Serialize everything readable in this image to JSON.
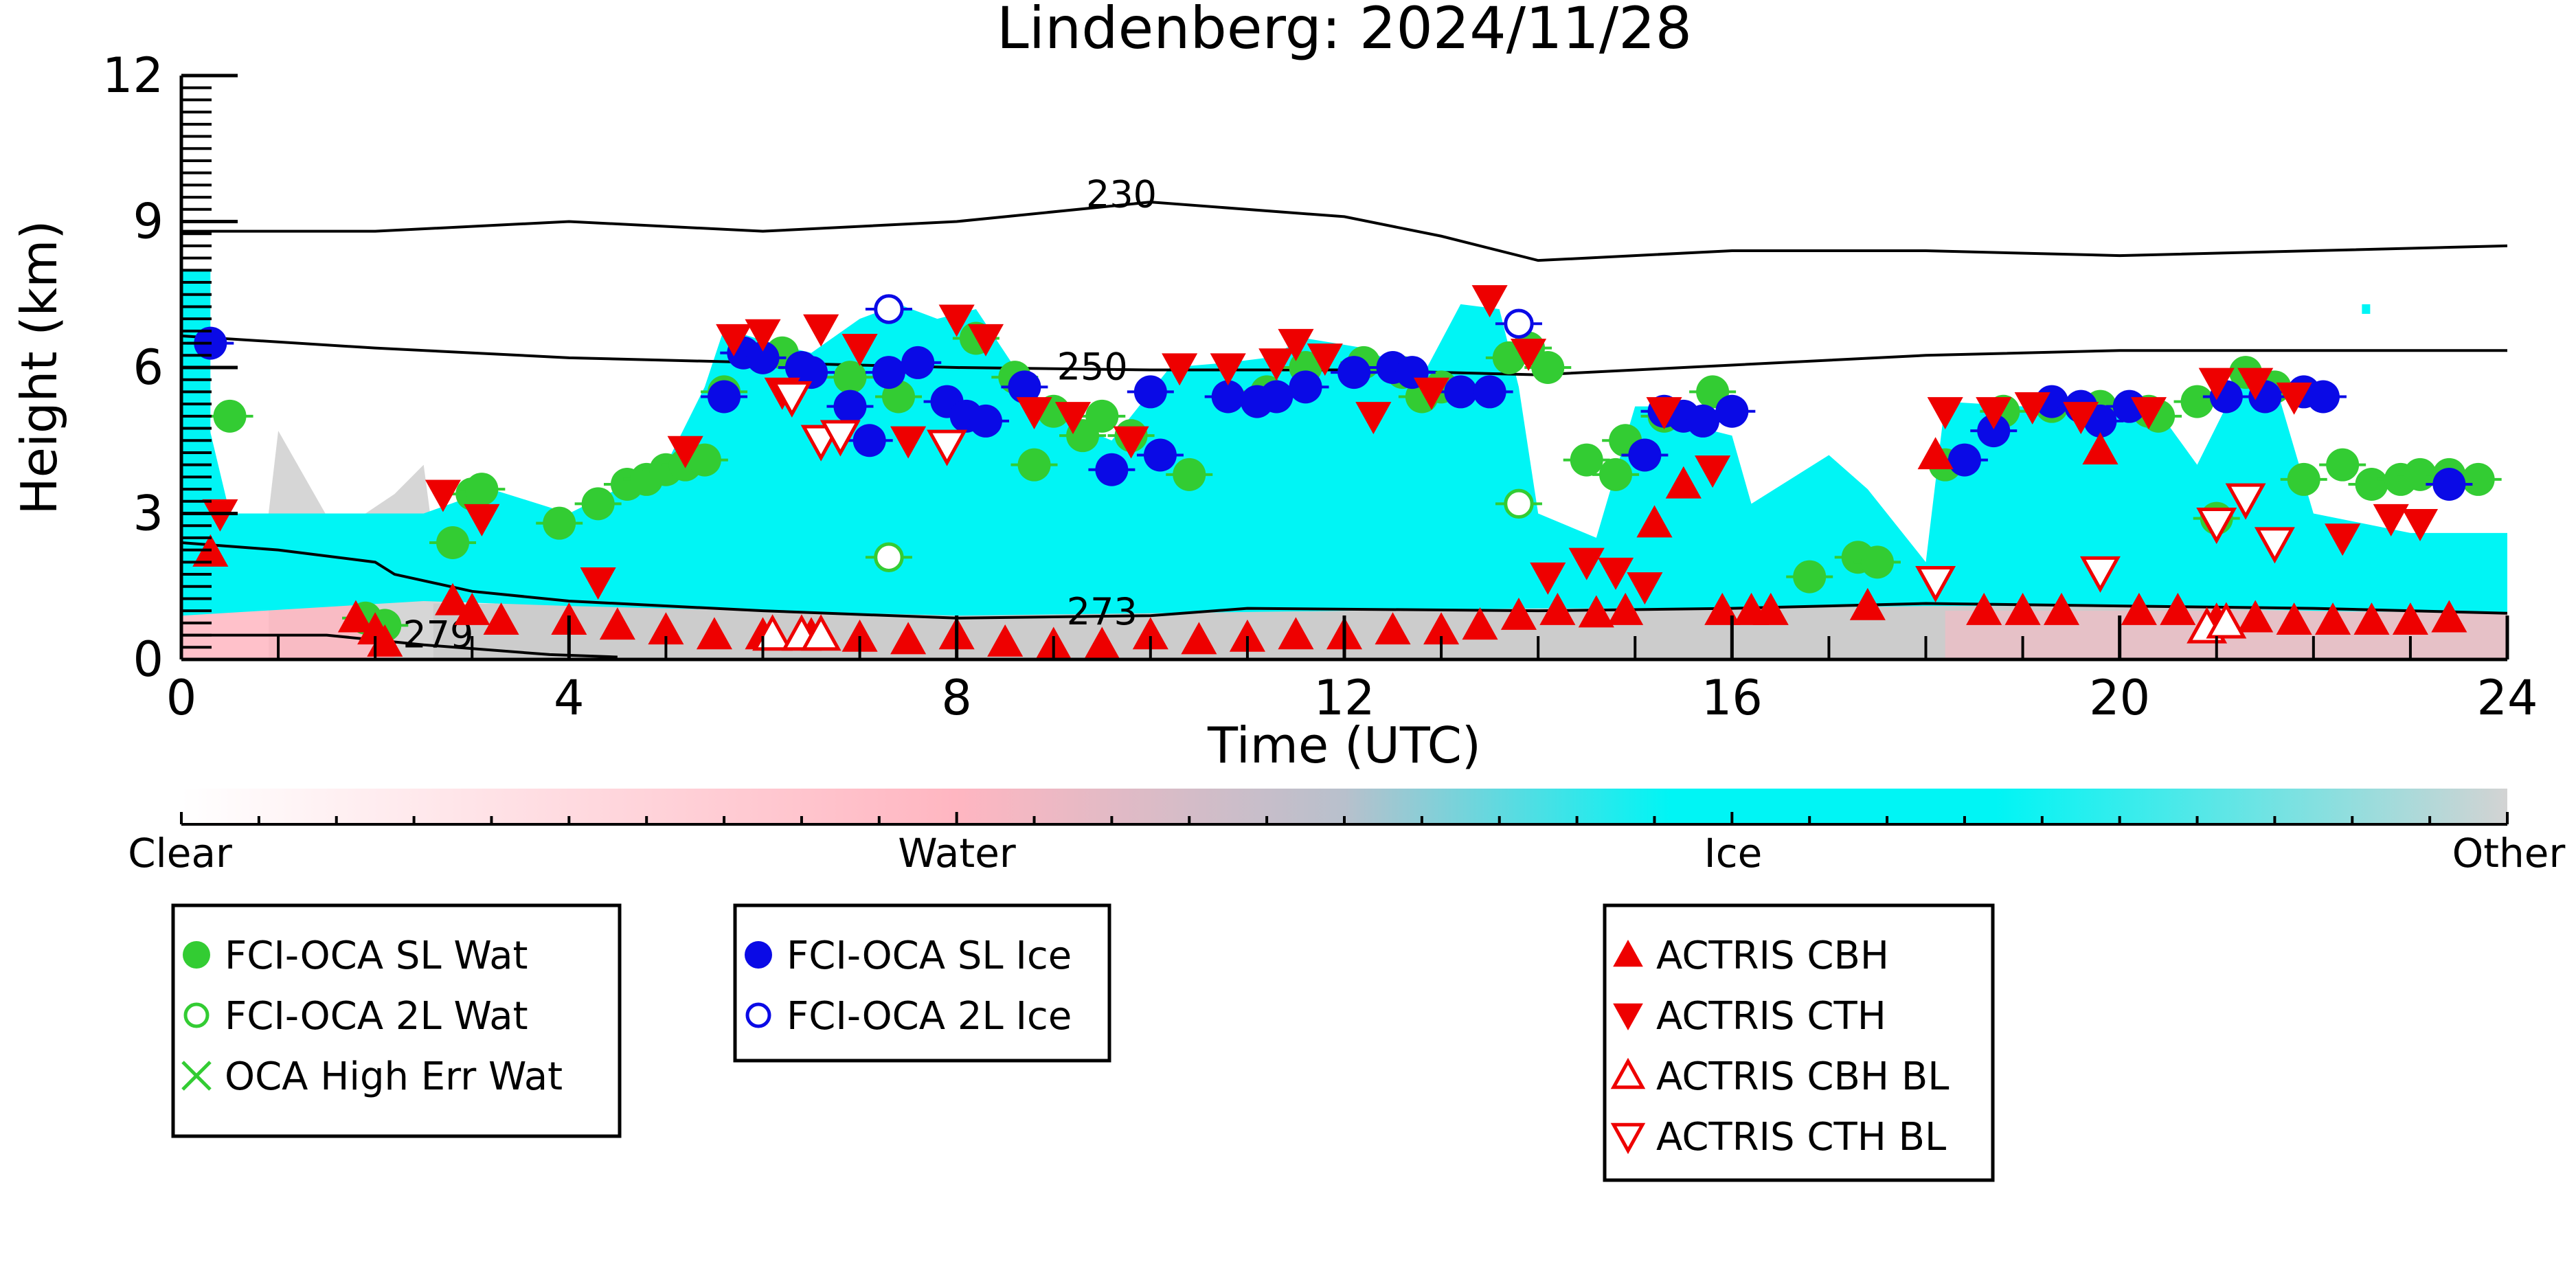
{
  "chart_data": {
    "type": "scatter",
    "title": "Lindenberg: 2024/11/28",
    "xlabel": "Time (UTC)",
    "ylabel": "Height (km)",
    "xlim": [
      0,
      24
    ],
    "ylim": [
      0,
      12
    ],
    "x_ticks": [
      0,
      4,
      8,
      12,
      16,
      20,
      24
    ],
    "y_ticks": [
      0,
      3,
      6,
      9,
      12
    ],
    "grid": false,
    "background": "cloud target classification (height vs time)",
    "colorbar": {
      "labels": [
        "Clear",
        "Water",
        "Ice",
        "Other"
      ],
      "colors": [
        "#ffffff",
        "#ffb6c1",
        "#00f5f5",
        "#d3d3d3"
      ]
    },
    "colors": {
      "water": "#33cc33",
      "ice": "#0a0ae6",
      "actris": "#ee0000",
      "ice_class": "#00f5f5",
      "water_class": "#ffb6c1",
      "other_class": "#cccccc"
    },
    "temperature_contours": [
      {
        "label": "230",
        "label_at": [
          9.7,
          9.3
        ],
        "points": [
          [
            0,
            8.8
          ],
          [
            2,
            8.8
          ],
          [
            4,
            9.0
          ],
          [
            6,
            8.8
          ],
          [
            8,
            9.0
          ],
          [
            10,
            9.4
          ],
          [
            12,
            9.1
          ],
          [
            13,
            8.7
          ],
          [
            14,
            8.2
          ],
          [
            16,
            8.4
          ],
          [
            18,
            8.4
          ],
          [
            20,
            8.3
          ],
          [
            22,
            8.4
          ],
          [
            24,
            8.5
          ]
        ]
      },
      {
        "label": "250",
        "label_at": [
          9.4,
          5.75
        ],
        "points": [
          [
            0,
            6.65
          ],
          [
            2,
            6.4
          ],
          [
            4,
            6.2
          ],
          [
            6,
            6.1
          ],
          [
            8,
            6.0
          ],
          [
            10,
            5.95
          ],
          [
            12,
            5.95
          ],
          [
            14,
            5.85
          ],
          [
            16,
            6.05
          ],
          [
            18,
            6.25
          ],
          [
            20,
            6.35
          ],
          [
            22,
            6.35
          ],
          [
            24,
            6.35
          ]
        ]
      },
      {
        "label": "273",
        "label_at": [
          9.5,
          0.72
        ],
        "points": [
          [
            0,
            2.4
          ],
          [
            1,
            2.25
          ],
          [
            2,
            2.0
          ],
          [
            2.2,
            1.75
          ],
          [
            3,
            1.4
          ],
          [
            4,
            1.2
          ],
          [
            6,
            1.0
          ],
          [
            8,
            0.85
          ],
          [
            10,
            0.9
          ],
          [
            11,
            1.05
          ],
          [
            14,
            1.0
          ],
          [
            16,
            1.05
          ],
          [
            18,
            1.15
          ],
          [
            20,
            1.1
          ],
          [
            22,
            1.05
          ],
          [
            24,
            0.95
          ]
        ]
      },
      {
        "label": "279",
        "label_at": [
          2.65,
          0.25
        ],
        "points": [
          [
            0,
            0.5
          ],
          [
            1.5,
            0.5
          ],
          [
            2.5,
            0.3
          ],
          [
            3.8,
            0.1
          ],
          [
            4.5,
            0.05
          ]
        ]
      }
    ],
    "series": [
      {
        "name": "FCI-OCA SL Wat",
        "marker": "filled-circle",
        "color": "#33cc33",
        "x": [
          0.5,
          1.9,
          2.1,
          2.8,
          3.0,
          3.1,
          3.9,
          4.3,
          4.6,
          4.8,
          5.0,
          5.2,
          5.4,
          5.6,
          6.2,
          6.9,
          7.4,
          8.2,
          8.6,
          8.8,
          9.0,
          9.3,
          9.5,
          9.8,
          10.4,
          11.2,
          11.6,
          12.2,
          12.6,
          12.8,
          13.0,
          13.7,
          13.9,
          14.1,
          14.5,
          14.8,
          14.9,
          15.1,
          15.3,
          15.8,
          16.8,
          17.3,
          17.5,
          18.2,
          18.8,
          19.3,
          19.8,
          20.3,
          20.4,
          20.8,
          21.0,
          21.3,
          21.6,
          21.9,
          22.3,
          22.6,
          22.9,
          23.1,
          23.4,
          23.7
        ],
        "y": [
          5.0,
          0.85,
          0.7,
          2.4,
          3.4,
          3.5,
          2.8,
          3.2,
          3.6,
          3.7,
          3.9,
          4.0,
          4.1,
          5.5,
          6.3,
          5.8,
          5.4,
          6.6,
          5.8,
          4.0,
          5.1,
          4.6,
          5.0,
          4.6,
          3.8,
          5.5,
          6.0,
          6.1,
          5.9,
          5.4,
          5.6,
          6.2,
          6.4,
          6.0,
          4.1,
          3.8,
          4.5,
          4.2,
          5.0,
          5.5,
          1.7,
          2.1,
          2.0,
          4.0,
          5.1,
          5.2,
          5.2,
          5.1,
          5.0,
          5.3,
          2.9,
          5.9,
          5.6,
          3.7,
          4.0,
          3.6,
          3.7,
          3.8,
          3.8,
          3.7
        ]
      },
      {
        "name": "FCI-OCA 2L Wat",
        "marker": "open-circle",
        "color": "#33cc33",
        "x": [
          7.3,
          13.8
        ],
        "y": [
          2.1,
          3.2
        ]
      },
      {
        "name": "OCA High Err Wat",
        "marker": "x",
        "color": "#33cc33",
        "x": [],
        "y": []
      },
      {
        "name": "FCI-OCA SL Ice",
        "marker": "filled-circle",
        "color": "#0a0ae6",
        "x": [
          0.3,
          5.6,
          5.8,
          6.0,
          6.4,
          6.5,
          6.9,
          7.1,
          7.3,
          7.6,
          7.9,
          8.1,
          8.3,
          8.7,
          9.6,
          10.0,
          10.1,
          10.8,
          11.1,
          11.3,
          11.6,
          12.1,
          12.5,
          12.7,
          13.2,
          13.5,
          15.1,
          15.3,
          15.5,
          15.7,
          16.0,
          18.4,
          18.7,
          19.3,
          19.6,
          19.8,
          20.1,
          21.1,
          21.5,
          21.9,
          22.1,
          23.4
        ],
        "y": [
          6.5,
          5.4,
          6.3,
          6.2,
          6.0,
          5.9,
          5.2,
          4.5,
          5.9,
          6.1,
          5.3,
          5.0,
          4.9,
          5.6,
          3.9,
          5.5,
          4.2,
          5.4,
          5.3,
          5.4,
          5.6,
          5.9,
          6.0,
          5.9,
          5.5,
          5.5,
          4.2,
          5.1,
          5.0,
          4.9,
          5.1,
          4.1,
          4.7,
          5.3,
          5.2,
          4.9,
          5.2,
          5.4,
          5.4,
          5.5,
          5.4,
          3.6
        ]
      },
      {
        "name": "FCI-OCA 2L Ice",
        "marker": "open-circle",
        "color": "#0a0ae6",
        "x": [
          7.3,
          13.8
        ],
        "y": [
          7.2,
          6.9
        ]
      },
      {
        "name": "ACTRIS CBH",
        "marker": "triangle-up",
        "color": "#ee0000",
        "x": [
          0.3,
          1.8,
          2.0,
          2.1,
          2.8,
          3.0,
          3.3,
          4.0,
          4.5,
          5.0,
          5.5,
          6.0,
          6.5,
          7.0,
          7.5,
          8.0,
          8.5,
          9.0,
          9.5,
          10.0,
          10.5,
          11.0,
          11.5,
          12.0,
          12.5,
          13.0,
          13.4,
          13.8,
          14.2,
          14.6,
          14.9,
          15.2,
          15.5,
          15.9,
          16.2,
          16.4,
          17.4,
          18.1,
          18.6,
          19.0,
          19.4,
          19.8,
          20.2,
          20.6,
          21.0,
          21.4,
          21.8,
          22.2,
          22.6,
          23.0,
          23.4
        ],
        "y": [
          2.2,
          0.85,
          0.6,
          0.35,
          1.2,
          1.0,
          0.8,
          0.8,
          0.7,
          0.6,
          0.5,
          0.5,
          0.5,
          0.45,
          0.4,
          0.5,
          0.35,
          0.3,
          0.3,
          0.5,
          0.4,
          0.45,
          0.5,
          0.5,
          0.6,
          0.6,
          0.7,
          0.9,
          1.0,
          0.95,
          1.0,
          2.8,
          3.6,
          1.0,
          1.0,
          1.0,
          1.1,
          4.2,
          1.0,
          1.0,
          1.0,
          4.3,
          1.0,
          1.0,
          0.8,
          0.85,
          0.8,
          0.8,
          0.8,
          0.8,
          0.85
        ]
      },
      {
        "name": "ACTRIS CTH",
        "marker": "triangle-down",
        "color": "#ee0000",
        "x": [
          0.4,
          2.7,
          3.1,
          4.3,
          5.2,
          5.7,
          6.0,
          6.2,
          6.6,
          7.0,
          7.5,
          8.0,
          8.3,
          8.8,
          9.2,
          9.8,
          10.3,
          10.8,
          11.3,
          11.5,
          11.8,
          12.3,
          12.9,
          13.5,
          13.9,
          14.1,
          14.5,
          14.8,
          15.1,
          15.3,
          15.8,
          18.2,
          18.7,
          19.1,
          19.6,
          20.3,
          21.0,
          21.4,
          21.8,
          22.3,
          22.8,
          23.1
        ],
        "y": [
          3.0,
          3.4,
          2.9,
          1.6,
          4.3,
          6.6,
          6.7,
          5.5,
          6.8,
          6.4,
          4.5,
          7.0,
          6.6,
          5.1,
          5.0,
          4.5,
          6.0,
          6.0,
          6.1,
          6.5,
          6.2,
          5.0,
          5.5,
          7.4,
          6.3,
          1.7,
          2.0,
          1.8,
          1.5,
          5.1,
          3.9,
          5.1,
          5.1,
          5.2,
          5.0,
          5.1,
          5.7,
          5.7,
          5.4,
          2.5,
          2.9,
          2.8
        ]
      },
      {
        "name": "ACTRIS CBH BL",
        "marker": "open-triangle-up",
        "color": "#ee0000",
        "x": [
          6.1,
          6.4,
          6.6,
          20.9,
          21.1
        ],
        "y": [
          0.5,
          0.5,
          0.5,
          0.65,
          0.75
        ]
      },
      {
        "name": "ACTRIS CTH BL",
        "marker": "open-triangle-down",
        "color": "#ee0000",
        "x": [
          6.3,
          6.6,
          6.8,
          7.9,
          18.1,
          19.8,
          21.0,
          21.3,
          21.6
        ],
        "y": [
          5.4,
          4.5,
          4.6,
          4.4,
          1.6,
          1.8,
          2.8,
          3.3,
          2.4
        ]
      }
    ]
  }
}
